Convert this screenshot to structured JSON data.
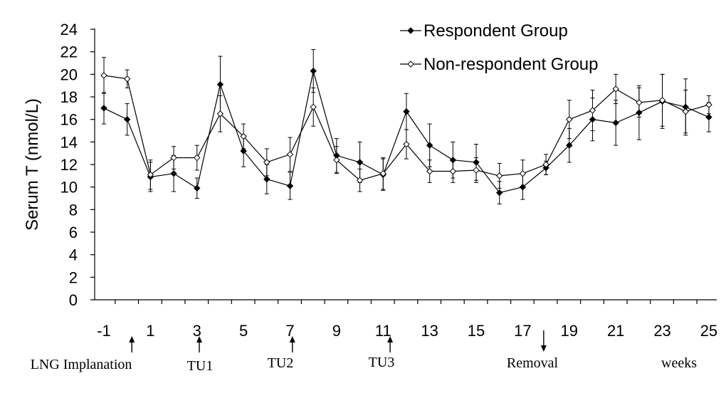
{
  "chart_data": {
    "type": "line",
    "ylabel": "Serum T (nmol/L)",
    "ylim": [
      0,
      24
    ],
    "ytick_step": 2,
    "x_tick_labels": [
      "-1",
      "1",
      "3",
      "5",
      "7",
      "9",
      "11",
      "13",
      "15",
      "17",
      "19",
      "21",
      "23",
      "25"
    ],
    "xlim": [
      -1,
      25
    ],
    "x_unit_label": "weeks",
    "x": [
      -1,
      0,
      1,
      2,
      3,
      4,
      5,
      6,
      7,
      8,
      9,
      10,
      11,
      12,
      13,
      14,
      15,
      16,
      17,
      18,
      19,
      20,
      21,
      22,
      23,
      24,
      25
    ],
    "series": [
      {
        "name": "Respondent Group",
        "marker": "filled-diamond",
        "color": "#000000",
        "values": [
          17.0,
          16.0,
          10.9,
          11.2,
          9.9,
          19.1,
          13.2,
          10.7,
          10.1,
          20.3,
          12.8,
          12.2,
          11.1,
          16.7,
          13.7,
          12.4,
          12.2,
          9.5,
          10.0,
          11.7,
          13.7,
          16.0,
          15.7,
          16.6,
          17.6,
          17.1,
          16.2
        ],
        "errors": [
          1.4,
          1.4,
          1.3,
          1.6,
          0.9,
          2.5,
          1.4,
          1.3,
          1.2,
          1.9,
          1.5,
          1.8,
          1.4,
          1.6,
          1.9,
          1.6,
          1.6,
          1.0,
          1.1,
          0.6,
          1.5,
          1.9,
          2.0,
          2.4,
          2.4,
          2.5,
          1.3
        ]
      },
      {
        "name": "Non-respondent Group",
        "marker": "open-diamond",
        "color": "#000000",
        "values": [
          19.9,
          19.6,
          11.1,
          12.6,
          12.6,
          16.5,
          14.5,
          12.2,
          12.9,
          17.1,
          12.4,
          10.6,
          11.2,
          13.8,
          11.4,
          11.4,
          11.5,
          11.0,
          11.2,
          12.0,
          16.0,
          16.8,
          18.7,
          17.5,
          17.7,
          16.7,
          17.3
        ],
        "errors": [
          1.6,
          0.8,
          1.3,
          1.0,
          1.1,
          1.6,
          1.1,
          1.2,
          1.5,
          1.7,
          1.2,
          1.0,
          1.4,
          1.3,
          1.0,
          1.0,
          1.1,
          1.1,
          1.2,
          0.9,
          1.7,
          1.8,
          1.3,
          1.3,
          2.3,
          1.9,
          0.8
        ]
      }
    ],
    "events": [
      {
        "label": "LNG Implanation",
        "week": 0.2,
        "arrow": "up"
      },
      {
        "label": "TU1",
        "week": 3.1,
        "arrow": "up"
      },
      {
        "label": "TU2",
        "week": 7.1,
        "arrow": "up"
      },
      {
        "label": "TU3",
        "week": 11.3,
        "arrow": "up"
      },
      {
        "label": "Removal",
        "week": 17.9,
        "arrow": "down"
      }
    ],
    "legend_position": "top-right",
    "grid": false
  }
}
